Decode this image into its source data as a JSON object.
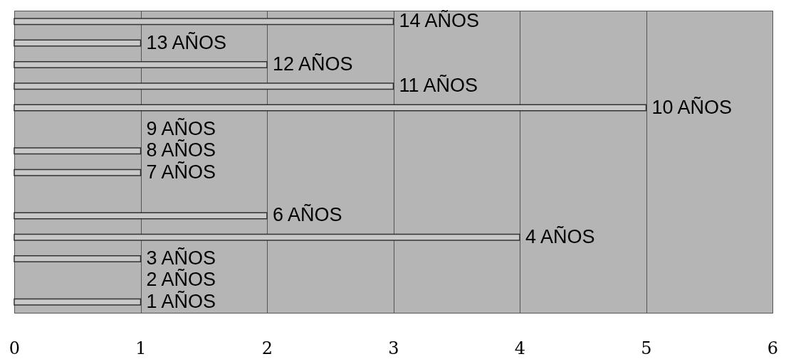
{
  "chart_data": {
    "type": "bar",
    "orientation": "horizontal",
    "categories": [
      "14 AÑOS",
      "13 AÑOS",
      "12 AÑOS",
      "11 AÑOS",
      "10 AÑOS",
      "9 AÑOS",
      "8 AÑOS",
      "7 AÑOS",
      null,
      "6 AÑOS",
      "4 AÑOS",
      "3 AÑOS",
      "2 AÑOS",
      "1 AÑOS"
    ],
    "values": [
      3,
      1,
      2,
      3,
      5,
      null,
      1,
      1,
      null,
      2,
      4,
      1,
      null,
      1
    ],
    "color": "#c8c8c8",
    "xlim": [
      0,
      6
    ],
    "xticks": [
      0,
      1,
      2,
      3,
      4,
      5,
      6
    ],
    "grid": "x"
  }
}
